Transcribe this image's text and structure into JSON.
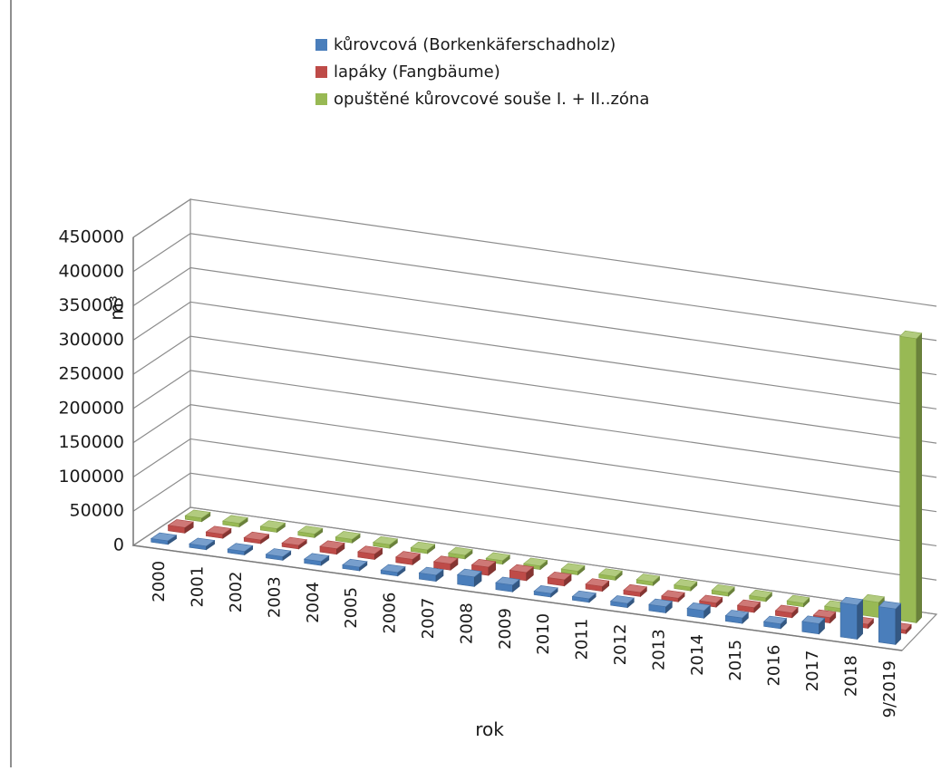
{
  "chart_data": {
    "type": "bar",
    "title": "",
    "xlabel": "rok",
    "ylabel": "m³",
    "ylim": [
      0,
      450000
    ],
    "y_ticks": [
      "0",
      "50000",
      "100000",
      "150000",
      "200000",
      "250000",
      "300000",
      "350000",
      "400000",
      "450000"
    ],
    "grid": true,
    "legend_position": "top",
    "categories": [
      "2000",
      "2001",
      "2002",
      "2003",
      "2004",
      "2005",
      "2006",
      "2007",
      "2008",
      "2009",
      "2010",
      "2011",
      "2012",
      "2013",
      "2014",
      "2015",
      "2016",
      "2017",
      "2018",
      "9/2019"
    ],
    "series": [
      {
        "name": "kůrovcová (Borkenkäferschadholz)",
        "color": "#4a7ebb",
        "values": [
          2000,
          2500,
          3000,
          5000,
          6000,
          4500,
          5000,
          9000,
          14000,
          10000,
          5000,
          5000,
          6000,
          9000,
          11000,
          8000,
          7000,
          15000,
          50000,
          52000
        ]
      },
      {
        "name": "lapáky  (Fangbäume)",
        "color": "#be4b48",
        "values": [
          8000,
          6000,
          5000,
          5000,
          8000,
          8000,
          8000,
          9000,
          12000,
          12000,
          9000,
          7000,
          6000,
          5000,
          6000,
          7000,
          7000,
          8000,
          6000,
          5000
        ]
      },
      {
        "name": "opuštěné kůrovcové souše I. + II..zóna",
        "color": "#98b954",
        "values": [
          0,
          0,
          0,
          0,
          0,
          0,
          0,
          0,
          0,
          0,
          0,
          0,
          0,
          0,
          0,
          0,
          0,
          0,
          22000,
          415000
        ]
      }
    ]
  }
}
